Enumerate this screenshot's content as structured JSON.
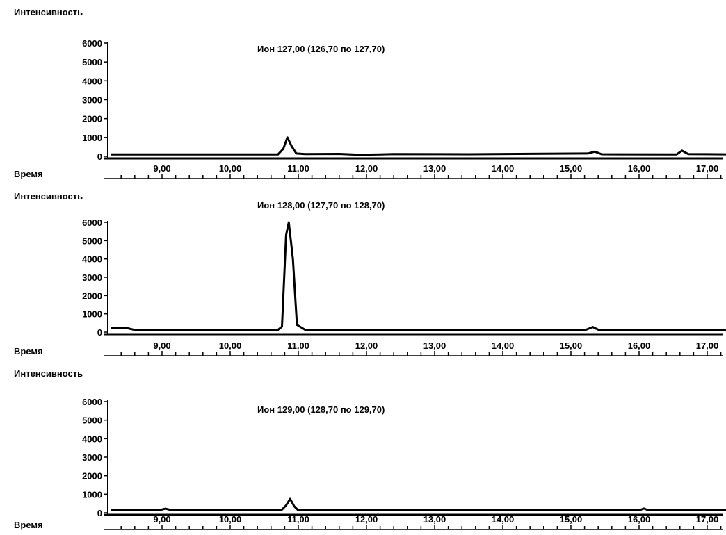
{
  "chart_data": [
    {
      "type": "line",
      "title": "Ион 127,00 (126,70 по 127,70)",
      "ylabel": "Интенсивность",
      "xlabel": "Время",
      "xlim": [
        8.25,
        17.45
      ],
      "ylim": [
        0,
        6000
      ],
      "x_ticks": [
        "9,00",
        "10,00",
        "11,00",
        "12,00",
        "13,00",
        "14,00",
        "15,00",
        "16,00",
        "17,00"
      ],
      "y_ticks": [
        "6000",
        "5000",
        "4000",
        "3000",
        "2000",
        "1000",
        "0"
      ],
      "series": [
        {
          "x": [
            8.25,
            10.7,
            10.78,
            10.84,
            10.9,
            10.97,
            11.1,
            11.6,
            11.9,
            12.2,
            12.4,
            13.5,
            15.25,
            15.35,
            15.45,
            16.55,
            16.63,
            16.72,
            17.45
          ],
          "values": [
            100,
            100,
            400,
            1000,
            550,
            150,
            120,
            130,
            80,
            100,
            120,
            110,
            150,
            250,
            110,
            100,
            300,
            120,
            100
          ]
        }
      ]
    },
    {
      "type": "line",
      "title": "Ион 128,00 (127,70 по 128,70)",
      "ylabel": "Интенсивность",
      "xlabel": "Время",
      "xlim": [
        8.25,
        17.45
      ],
      "ylim": [
        0,
        6000
      ],
      "x_ticks": [
        "9,00",
        "10,00",
        "11,00",
        "12,00",
        "13,00",
        "14,00",
        "15,00",
        "16,00",
        "17,00"
      ],
      "y_ticks": [
        "6000",
        "5000",
        "4000",
        "3000",
        "2000",
        "1000",
        "0"
      ],
      "series": [
        {
          "x": [
            8.25,
            8.5,
            8.6,
            10.7,
            10.76,
            10.82,
            10.86,
            10.92,
            10.98,
            11.1,
            11.3,
            15.2,
            15.32,
            15.42,
            17.45
          ],
          "values": [
            230,
            210,
            120,
            120,
            300,
            5300,
            6000,
            4000,
            400,
            130,
            110,
            100,
            280,
            100,
            100
          ]
        }
      ]
    },
    {
      "type": "line",
      "title": "Ион 129,00 (128,70 по 129,70)",
      "ylabel": "Интенсивность",
      "xlabel": "Время",
      "xlim": [
        8.25,
        17.45
      ],
      "ylim": [
        0,
        6000
      ],
      "x_ticks": [
        "9,00",
        "10,00",
        "11,00",
        "12,00",
        "13,00",
        "14,00",
        "15,00",
        "16,00",
        "17,00"
      ],
      "y_ticks": [
        "6000",
        "5000",
        "4000",
        "3000",
        "2000",
        "1000",
        "0"
      ],
      "series": [
        {
          "x": [
            8.25,
            8.95,
            9.05,
            9.15,
            10.75,
            10.82,
            10.88,
            10.94,
            11.0,
            16.0,
            16.07,
            16.14,
            17.45
          ],
          "values": [
            130,
            130,
            220,
            130,
            130,
            400,
            750,
            350,
            130,
            130,
            230,
            130,
            130
          ]
        }
      ]
    }
  ]
}
